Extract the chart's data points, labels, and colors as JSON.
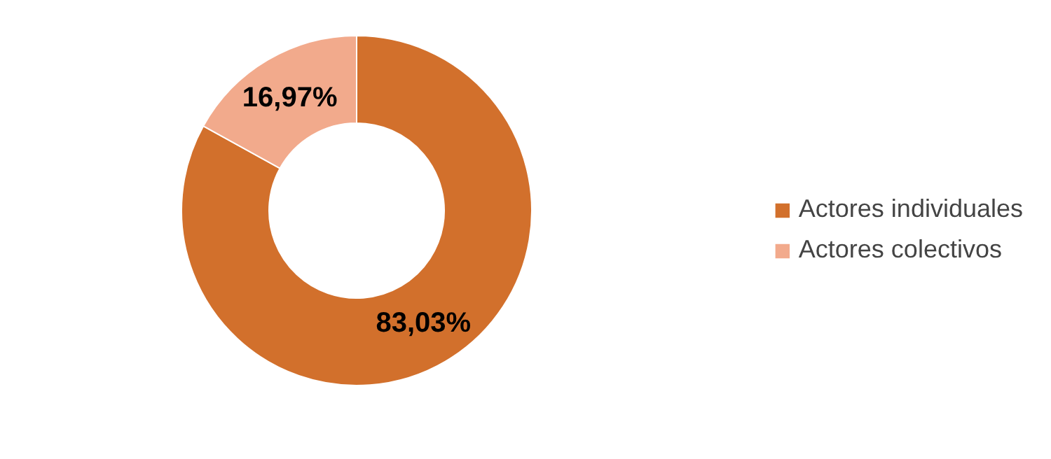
{
  "chart_data": {
    "type": "donut",
    "categories": [
      "Actores individuales",
      "Actores colectivos"
    ],
    "values": [
      83.03,
      16.97
    ],
    "colors": [
      "#d2702c",
      "#f2aa8c"
    ],
    "value_labels": [
      "83,03%",
      "16,97%"
    ],
    "legend": "right"
  }
}
